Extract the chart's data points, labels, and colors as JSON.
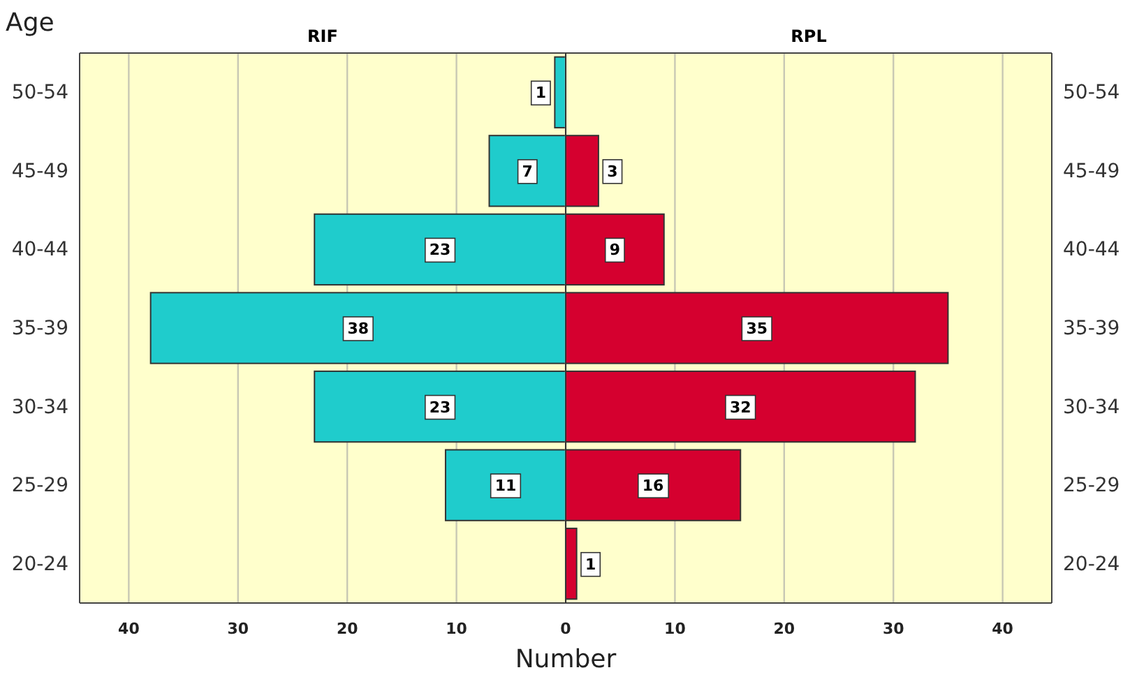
{
  "chart_data": [
    {
      "type": "bar",
      "orientation": "horizontal",
      "title": "RIF",
      "ylabel": "Age",
      "xlabel": "Number",
      "categories": [
        "50-54",
        "45-49",
        "40-44",
        "35-39",
        "30-34",
        "25-29",
        "20-24"
      ],
      "series": [
        {
          "color": "#1fcccc",
          "values": [
            1,
            7,
            23,
            38,
            23,
            11,
            null
          ]
        }
      ],
      "xlim": [
        44.5,
        0
      ],
      "xticks": [
        40,
        30,
        20,
        10
      ],
      "grid": "x",
      "data_labels": true
    },
    {
      "type": "bar",
      "orientation": "horizontal",
      "title": "RPL",
      "categories": [
        "50-54",
        "45-49",
        "40-44",
        "35-39",
        "30-34",
        "25-29",
        "20-24"
      ],
      "series": [
        {
          "color": "#d5002f",
          "values": [
            null,
            3,
            9,
            35,
            32,
            16,
            1
          ]
        }
      ],
      "xlim": [
        0,
        44.5
      ],
      "xticks": [
        0,
        10,
        20,
        30,
        40
      ],
      "grid": "x",
      "data_labels": true
    }
  ]
}
